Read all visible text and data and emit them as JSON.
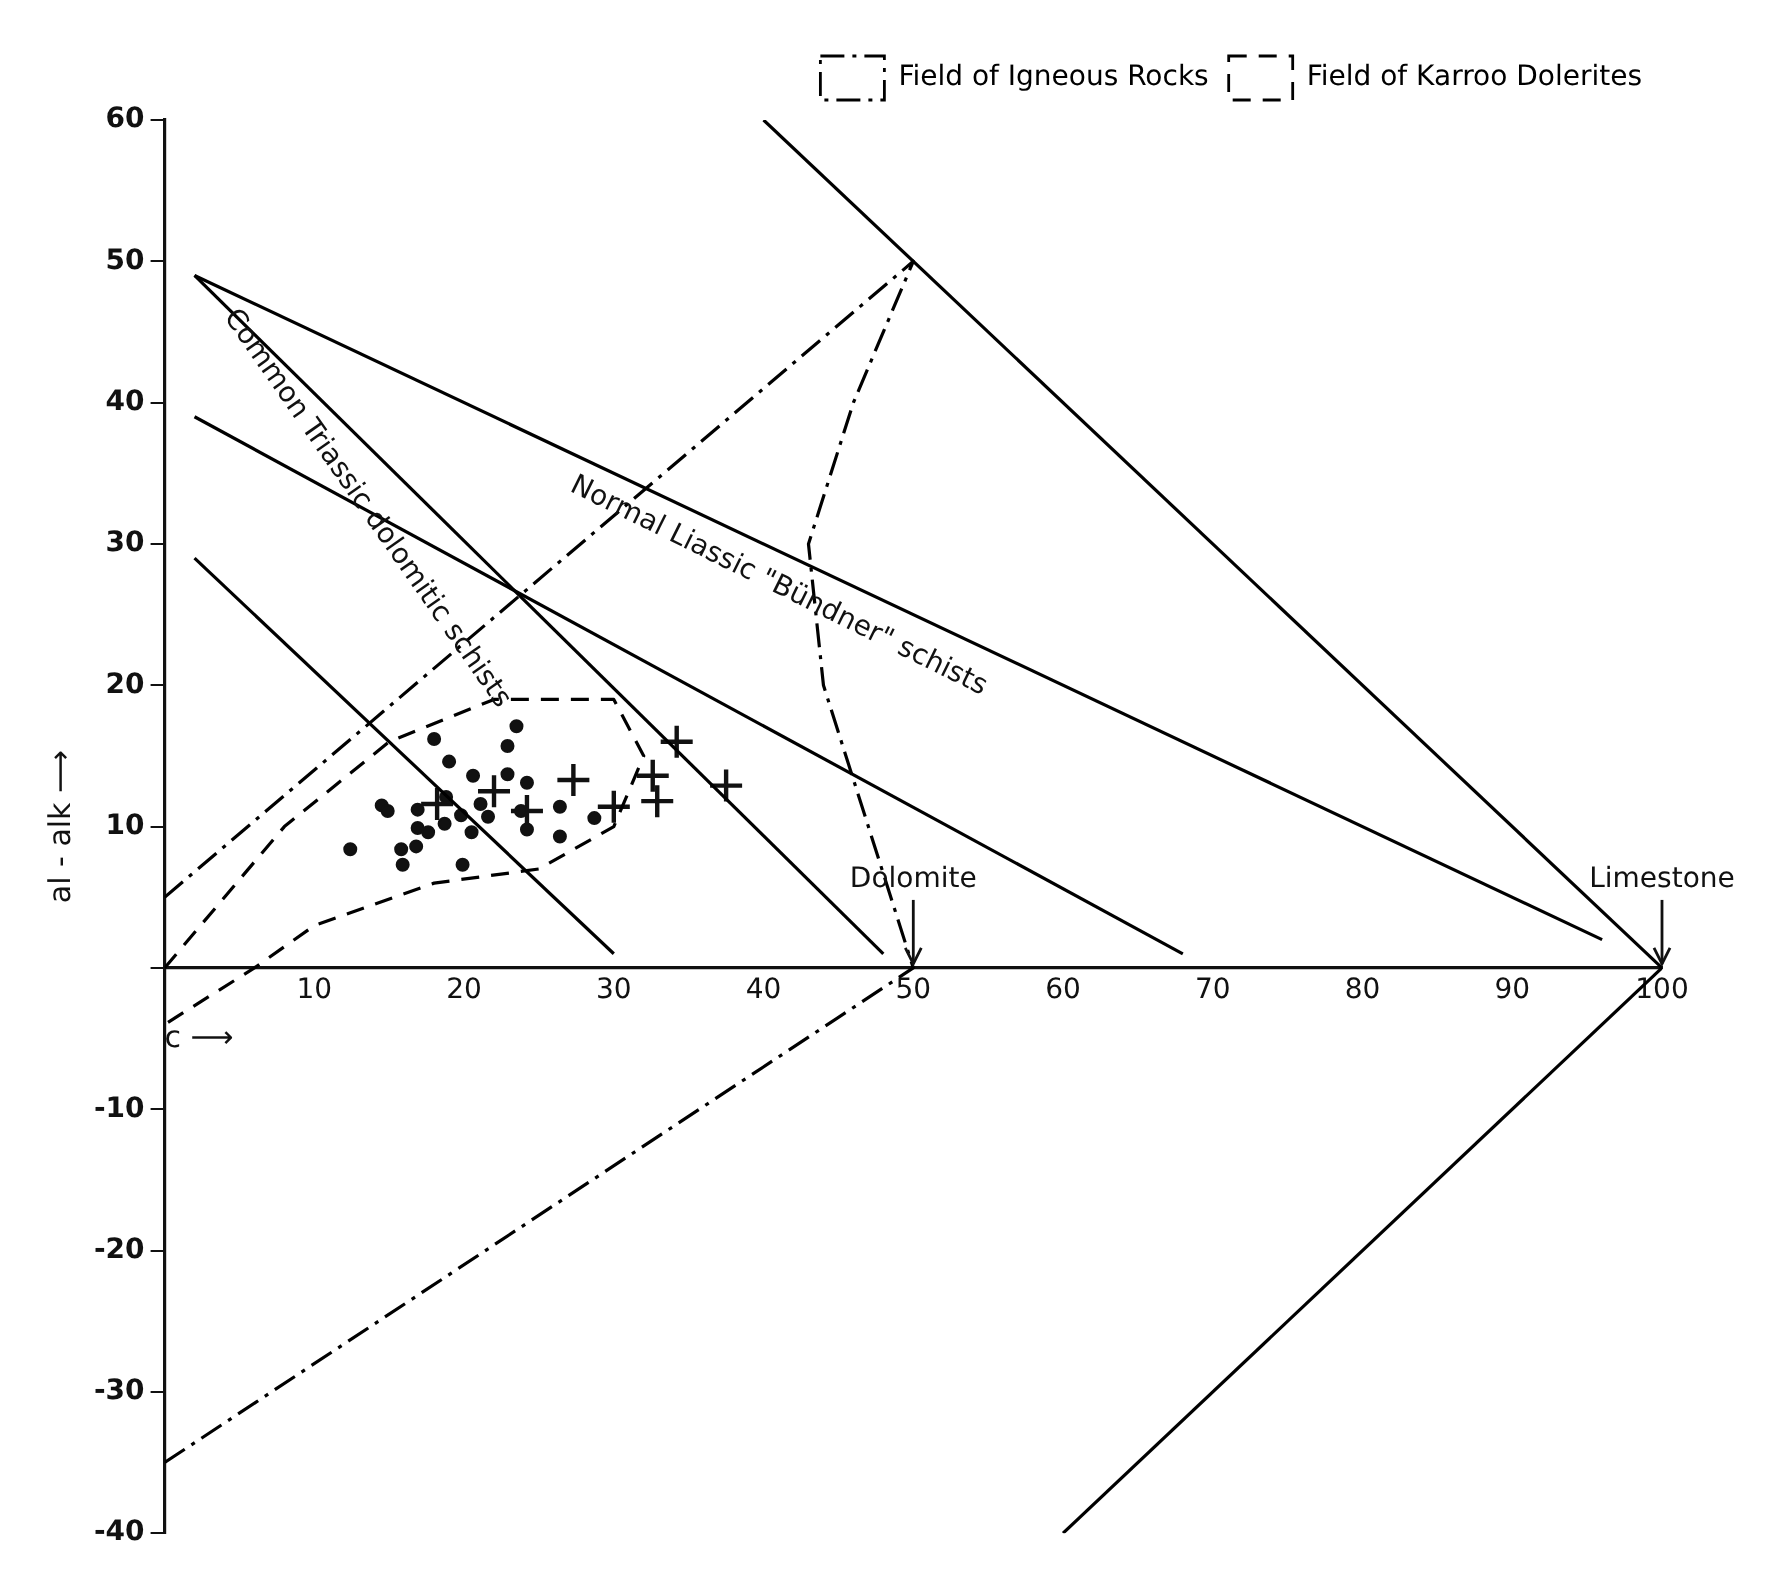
{
  "chart_data": {
    "type": "scatter",
    "xlabel": "c ⟶",
    "ylabel": "al - alk ⟶",
    "xlim": [
      0,
      100
    ],
    "ylim": [
      -40,
      60
    ],
    "xticks": [
      10,
      20,
      30,
      40,
      50,
      60,
      70,
      80,
      90,
      100
    ],
    "yticks": [
      -40,
      -30,
      -20,
      -10,
      {
        "value": 0,
        "label": null
      },
      10,
      20,
      30,
      40,
      50,
      60
    ],
    "grid": false,
    "legend": "top right",
    "series": [
      {
        "type": "line",
        "line_style": "solid",
        "color": "#000000",
        "x": [
          40,
          100
        ],
        "values": [
          60,
          0
        ]
      },
      {
        "type": "line",
        "line_style": "solid",
        "color": "#000000",
        "x": [
          60,
          100
        ],
        "values": [
          -40,
          0
        ]
      },
      {
        "type": "line",
        "line_style": "solid",
        "color": "#000000",
        "x": [
          2,
          96
        ],
        "values": [
          49,
          2
        ]
      },
      {
        "type": "line",
        "line_style": "solid",
        "color": "#000000",
        "x": [
          2,
          48
        ],
        "values": [
          49,
          1
        ]
      },
      {
        "type": "line",
        "line_style": "solid",
        "color": "#000000",
        "x": [
          2,
          68
        ],
        "values": [
          39,
          1
        ]
      },
      {
        "type": "line",
        "line_style": "solid",
        "color": "#000000",
        "x": [
          2,
          30
        ],
        "values": [
          29,
          1
        ]
      },
      {
        "name": "Field of Igneous Rocks",
        "type": "line",
        "line_style": "dashdot",
        "color": "#000000",
        "x": [
          0,
          50,
          46,
          43,
          44,
          47,
          50,
          0
        ],
        "values": [
          5,
          50,
          40,
          30,
          20,
          10,
          0,
          -35
        ]
      },
      {
        "name": "Field of Karroo Dolerites",
        "type": "line",
        "line_style": "dashed",
        "color": "#000000",
        "x": [
          0,
          8,
          15,
          22,
          30,
          32,
          30,
          25,
          18,
          10,
          6,
          0
        ],
        "values": [
          0,
          10,
          16,
          19,
          19,
          15,
          10,
          7,
          6,
          3,
          0,
          -4
        ]
      },
      {
        "type": "scatter",
        "marker": "circle",
        "color": "#111111",
        "x": [
          23.5,
          22.9,
          18.0,
          19.0,
          20.6,
          22.9,
          24.2,
          14.5,
          14.9,
          16.9,
          18.8,
          19.8,
          21.1,
          21.6,
          23.8,
          26.4,
          26.4,
          28.7,
          24.2,
          18.7,
          16.9,
          17.6,
          20.5,
          12.4,
          15.8,
          16.8,
          15.9,
          19.9
        ],
        "values": [
          17.1,
          15.7,
          16.2,
          14.6,
          13.6,
          13.7,
          13.1,
          11.5,
          11.1,
          11.2,
          12.1,
          10.8,
          11.6,
          10.7,
          11.1,
          11.4,
          9.3,
          10.6,
          9.8,
          10.2,
          9.9,
          9.6,
          9.6,
          8.4,
          8.4,
          8.6,
          7.3,
          7.3
        ]
      },
      {
        "type": "scatter",
        "marker": "cross",
        "color": "#111111",
        "x": [
          22.0,
          27.3,
          24.2,
          30.0,
          32.6,
          32.9,
          34.2,
          37.5,
          18.2
        ],
        "values": [
          12.5,
          13.3,
          11.1,
          11.4,
          13.6,
          11.8,
          16.0,
          12.9,
          11.6
        ]
      }
    ],
    "annotations": [
      "Normal Liassic \"Bündner\" schists",
      "Common Triassic dolomitic schists",
      {
        "text": "Dolomite",
        "x": 50,
        "y": 0
      },
      {
        "text": "Limestone",
        "x": 100,
        "y": 0
      }
    ]
  }
}
